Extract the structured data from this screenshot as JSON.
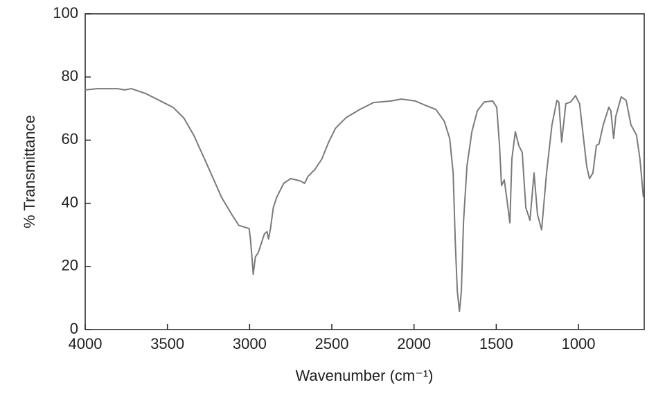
{
  "chart_data": {
    "type": "line",
    "xlabel": "Wavenumber (cm⁻¹)",
    "ylabel": "% Transmittance",
    "xlim": [
      4000,
      600
    ],
    "ylim": [
      0,
      100
    ],
    "xticks": [
      4000,
      3500,
      3000,
      2500,
      2000,
      1500,
      1000
    ],
    "yticks": [
      0,
      20,
      40,
      60,
      80,
      100
    ],
    "series": [
      {
        "color": "#7a7a7a",
        "x": [
          4000,
          3928,
          3802,
          3760,
          3720,
          3634,
          3550,
          3466,
          3400,
          3340,
          3255,
          3171,
          3108,
          3066,
          3003,
          2995,
          2986,
          2978,
          2965,
          2948,
          2927,
          2910,
          2894,
          2885,
          2873,
          2856,
          2835,
          2793,
          2751,
          2717,
          2688,
          2666,
          2645,
          2603,
          2561,
          2519,
          2477,
          2414,
          2330,
          2246,
          2140,
          2077,
          1993,
          1930,
          1867,
          1816,
          1783,
          1762,
          1749,
          1737,
          1724,
          1712,
          1699,
          1678,
          1648,
          1615,
          1573,
          1522,
          1497,
          1480,
          1468,
          1451,
          1434,
          1417,
          1405,
          1384,
          1363,
          1342,
          1320,
          1295,
          1270,
          1249,
          1224,
          1194,
          1161,
          1131,
          1119,
          1102,
          1077,
          1047,
          1018,
          993,
          950,
          933,
          912,
          891,
          875,
          849,
          815,
          803,
          786,
          773,
          740,
          710,
          681,
          647,
          626,
          605
        ],
        "values": [
          75.9,
          76.3,
          76.3,
          75.9,
          76.3,
          74.8,
          72.6,
          70.4,
          67,
          61.6,
          51.8,
          41.9,
          36.4,
          33,
          32,
          28.7,
          23,
          17.5,
          23,
          24.3,
          27.6,
          30.3,
          31,
          28.7,
          32,
          38.6,
          41.9,
          46.3,
          47.8,
          47.4,
          47,
          46.3,
          48.5,
          50.7,
          54,
          59.4,
          63.8,
          67.1,
          69.7,
          71.9,
          72.4,
          73,
          72.4,
          71,
          69.7,
          66,
          60.5,
          49.6,
          27.6,
          12.3,
          5.7,
          12.3,
          34.2,
          51.8,
          62.7,
          69.3,
          72.1,
          72.4,
          70.4,
          58.3,
          45.6,
          47.4,
          40.8,
          33.8,
          54,
          62.7,
          58.3,
          56.1,
          38.6,
          34.6,
          49.6,
          36.4,
          31.6,
          49.6,
          64.9,
          72.6,
          72,
          59.4,
          71.5,
          72.1,
          74.1,
          71.5,
          51.8,
          47.8,
          49.6,
          58.3,
          58.8,
          64.9,
          70.4,
          69.3,
          60.5,
          67.5,
          73.7,
          72.6,
          64.9,
          61.6,
          54,
          41.9
        ]
      }
    ]
  }
}
